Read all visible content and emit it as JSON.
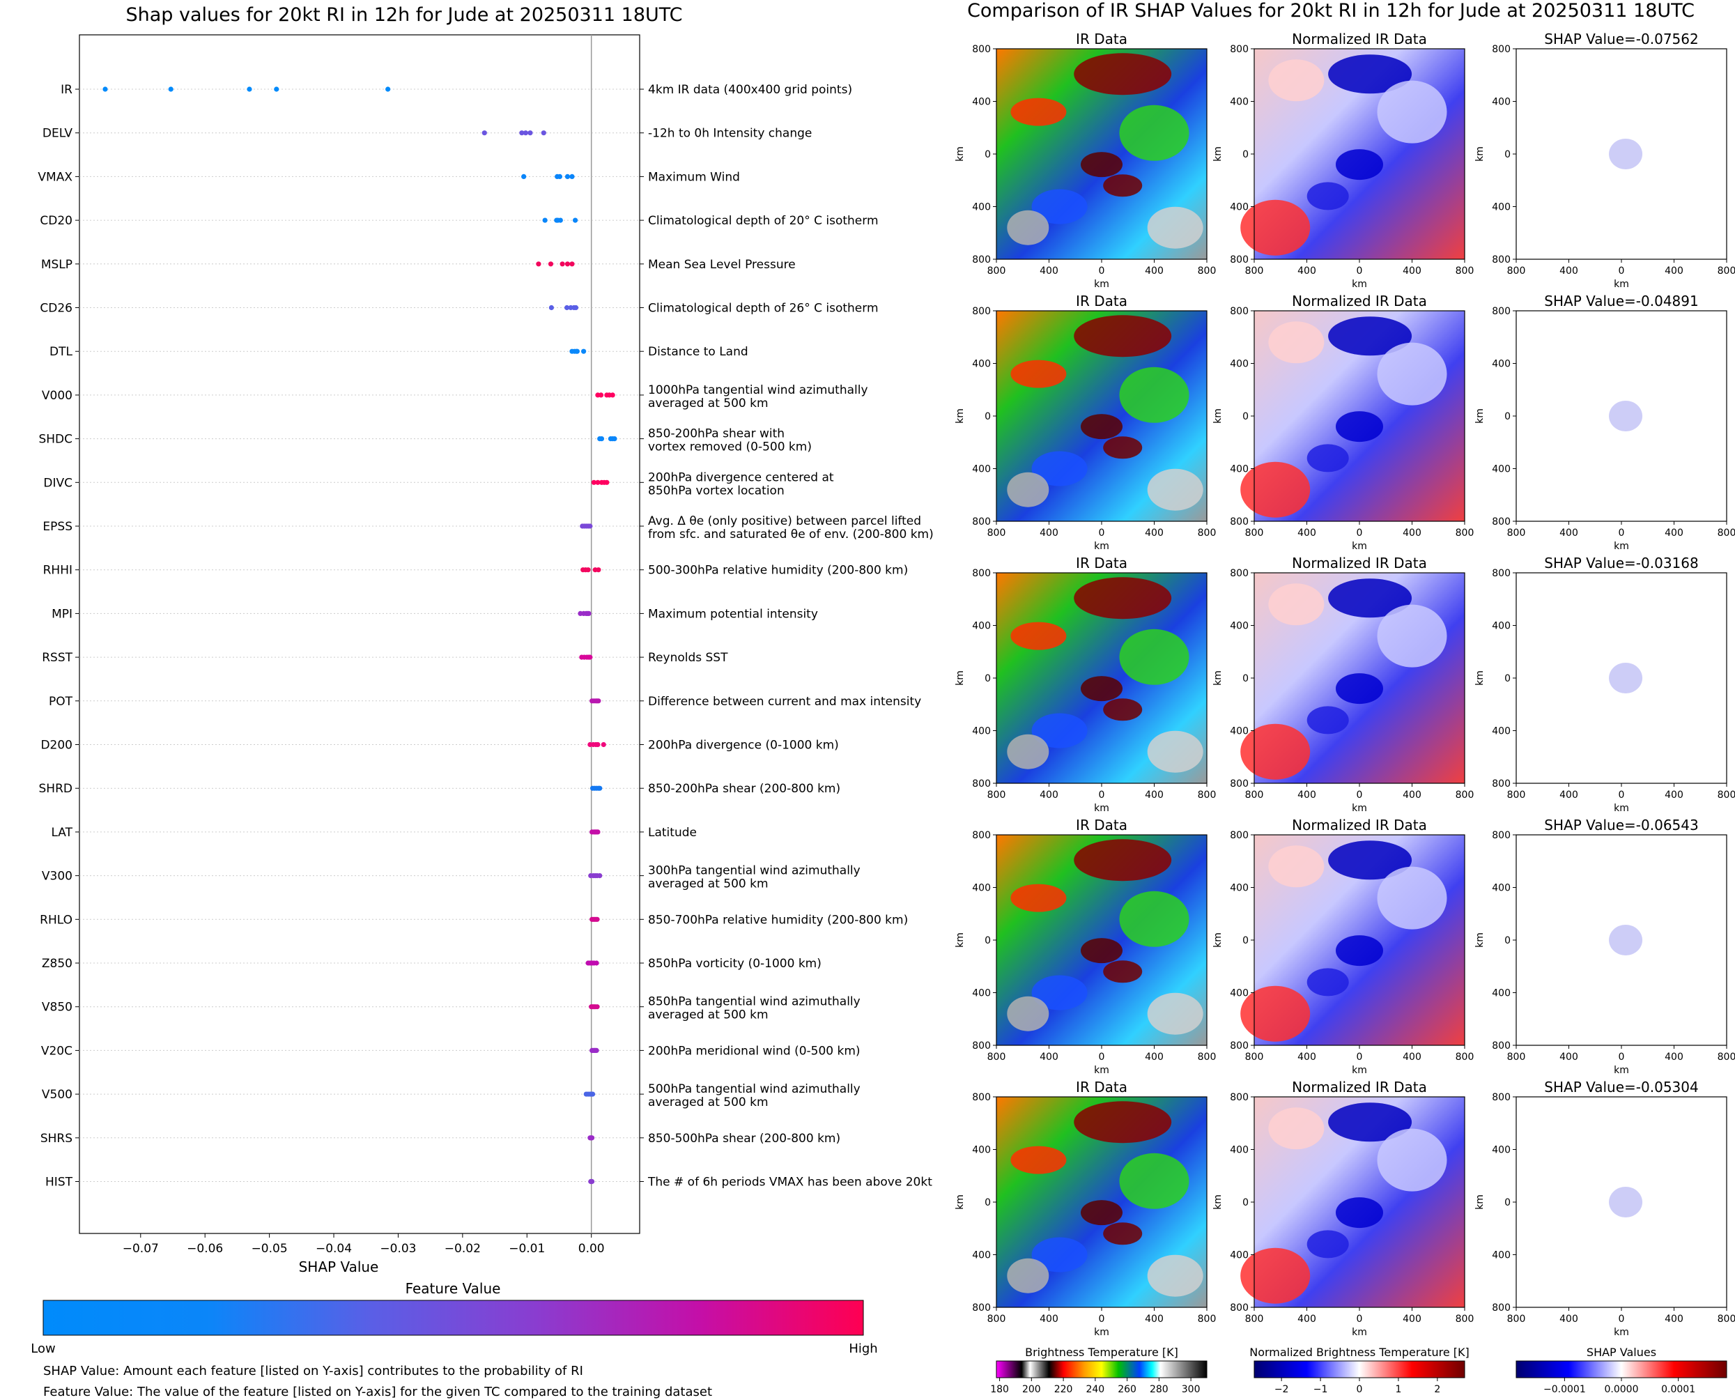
{
  "left_title": "Shap values for 20kt RI in 12h for Jude at 20250311 18UTC",
  "right_title": "Comparison of IR SHAP Values for 20kt RI in 12h for Jude at 20250311 18UTC",
  "chart_data": [
    {
      "type": "scatter",
      "title": "Shap values for 20kt RI in 12h for Jude at 20250311 18UTC",
      "xlabel": "SHAP Value",
      "xlim": [
        -0.0795,
        0.0075
      ],
      "xticks": [
        "−0.07",
        "−0.06",
        "−0.05",
        "−0.04",
        "−0.03",
        "−0.02",
        "−0.01",
        "0.00"
      ],
      "xtick_values": [
        -0.07,
        -0.06,
        -0.05,
        -0.04,
        -0.03,
        -0.02,
        -0.01,
        0.0
      ],
      "features": [
        {
          "name": "IR",
          "desc": [
            "4km IR data (400x400 grid points)"
          ],
          "shap": [
            -0.0755,
            -0.0653,
            -0.0531,
            -0.0489,
            -0.0316
          ],
          "color": "#008afb"
        },
        {
          "name": "DELV",
          "desc": [
            "-12h to 0h Intensity change"
          ],
          "shap": [
            -0.0166,
            -0.0108,
            -0.0102,
            -0.0095,
            -0.0074
          ],
          "color": "#6a55e0"
        },
        {
          "name": "VMAX",
          "desc": [
            "Maximum Wind"
          ],
          "shap": [
            -0.0105,
            -0.0053,
            -0.0049,
            -0.0037,
            -0.003
          ],
          "color": "#0a85fa"
        },
        {
          "name": "CD20",
          "desc": [
            "Climatological depth of 20° C isotherm"
          ],
          "shap": [
            -0.0072,
            -0.0054,
            -0.0048,
            -0.0052,
            -0.0025
          ],
          "color": "#0a86fa"
        },
        {
          "name": "MSLP",
          "desc": [
            "Mean Sea Level Pressure"
          ],
          "shap": [
            -0.0082,
            -0.0063,
            -0.0045,
            -0.0037,
            -0.003
          ],
          "color": "#f2065c"
        },
        {
          "name": "CD26",
          "desc": [
            "Climatological depth of 26° C isotherm"
          ],
          "shap": [
            -0.0062,
            -0.0038,
            -0.0032,
            -0.0027,
            -0.0024
          ],
          "color": "#5a5fe6"
        },
        {
          "name": "DTL",
          "desc": [
            "Distance to Land"
          ],
          "shap": [
            -0.003,
            -0.0026,
            -0.0023,
            -0.0022,
            -0.0012
          ],
          "color": "#0a88fa"
        },
        {
          "name": "V000",
          "desc": [
            "1000hPa tangential wind azimuthally",
            "averaged at 500 km"
          ],
          "shap": [
            0.001,
            0.0015,
            0.0024,
            0.0028,
            0.0033
          ],
          "color": "#ff0060"
        },
        {
          "name": "SHDC",
          "desc": [
            "850-200hPa shear with",
            "vortex removed (0-500 km)"
          ],
          "shap": [
            0.0013,
            0.0016,
            0.003,
            0.0033,
            0.0036
          ],
          "color": "#0a86fa"
        },
        {
          "name": "DIVC",
          "desc": [
            "200hPa divergence centered at",
            "850hPa vortex location"
          ],
          "shap": [
            0.0004,
            0.001,
            0.0016,
            0.002,
            0.0024
          ],
          "color": "#ff0060"
        },
        {
          "name": "EPSS",
          "desc": [
            "Avg. Δ θe (only positive) between parcel lifted",
            "from sfc. and saturated θe of env. (200-800 km)"
          ],
          "shap": [
            -0.0014,
            -0.0011,
            -0.0008,
            -0.0005,
            -0.0002
          ],
          "color": "#7a48d8"
        },
        {
          "name": "RHHI",
          "desc": [
            "500-300hPa relative humidity (200-800 km)"
          ],
          "shap": [
            -0.0013,
            -0.0009,
            -0.0005,
            0.0006,
            0.0011
          ],
          "color": "#f2085f"
        },
        {
          "name": "MPI",
          "desc": [
            "Maximum potential intensity"
          ],
          "shap": [
            -0.0017,
            -0.0012,
            -0.0008,
            -0.0006,
            -0.0004
          ],
          "color": "#9a2cc8"
        },
        {
          "name": "RSST",
          "desc": [
            "Reynolds SST"
          ],
          "shap": [
            -0.0015,
            -0.0011,
            -0.0007,
            -0.0004,
            -0.0002
          ],
          "color": "#d8089a"
        },
        {
          "name": "POT",
          "desc": [
            "Difference between current and max intensity"
          ],
          "shap": [
            0.0001,
            0.0004,
            0.0007,
            0.0009,
            0.0011
          ],
          "color": "#b818b0"
        },
        {
          "name": "D200",
          "desc": [
            "200hPa divergence (0-1000 km)"
          ],
          "shap": [
            -0.0002,
            0.0003,
            0.0007,
            0.001,
            0.0019
          ],
          "color": "#f0087c"
        },
        {
          "name": "SHRD",
          "desc": [
            "850-200hPa shear (200-800 km)"
          ],
          "shap": [
            0.0002,
            0.0005,
            0.0008,
            0.0011,
            0.0013
          ],
          "color": "#1378f2"
        },
        {
          "name": "LAT",
          "desc": [
            "Latitude"
          ],
          "shap": [
            0.0001,
            0.0004,
            0.0006,
            0.0008,
            0.001
          ],
          "color": "#c40fa8"
        },
        {
          "name": "V300",
          "desc": [
            "300hPa tangential wind azimuthally",
            "averaged at 500 km"
          ],
          "shap": [
            -0.0001,
            0.0003,
            0.0006,
            0.0009,
            0.0013
          ],
          "color": "#8a3dd0"
        },
        {
          "name": "RHLO",
          "desc": [
            "850-700hPa relative humidity (200-800 km)"
          ],
          "shap": [
            0.0001,
            0.0003,
            0.0005,
            0.0007,
            0.0009
          ],
          "color": "#d40a90"
        },
        {
          "name": "Z850",
          "desc": [
            "850hPa vorticity (0-1000 km)"
          ],
          "shap": [
            -0.0005,
            -0.0002,
            0.0001,
            0.0004,
            0.0008
          ],
          "color": "#c00cb0"
        },
        {
          "name": "V850",
          "desc": [
            "850hPa tangential wind azimuthally",
            "averaged at 500 km"
          ],
          "shap": [
            0.0,
            0.0002,
            0.0004,
            0.0006,
            0.0009
          ],
          "color": "#d40a90"
        },
        {
          "name": "V20C",
          "desc": [
            "200hPa meridional wind (0-500 km)"
          ],
          "shap": [
            0.0001,
            0.0003,
            0.0005,
            0.0006,
            0.0008
          ],
          "color": "#9a2cc8"
        },
        {
          "name": "V500",
          "desc": [
            "500hPa tangential wind azimuthally",
            "averaged at 500 km"
          ],
          "shap": [
            -0.0008,
            -0.0005,
            -0.0002,
            0.0,
            0.0002
          ],
          "color": "#4a65e6"
        },
        {
          "name": "SHRS",
          "desc": [
            "850-500hPa shear (200-800 km)"
          ],
          "shap": [
            -0.0002,
            -0.0001,
            0.0,
            0.0,
            0.0001
          ],
          "color": "#9a2cc8"
        },
        {
          "name": "HIST",
          "desc": [
            "The # of 6h periods VMAX has been above 20kt"
          ],
          "shap": [
            -0.0001,
            0.0,
            0.0,
            0.0,
            0.0001
          ],
          "color": "#8a3dd0"
        }
      ],
      "colorbar": {
        "title": "Feature Value",
        "low": "Low",
        "high": "High",
        "colors": [
          "#008bfb",
          "#0b86f9",
          "#5a5fe6",
          "#8a3dd0",
          "#c40fa8",
          "#ff0052"
        ]
      }
    },
    {
      "type": "heatmap",
      "title": "Comparison of IR SHAP Values for 20kt RI in 12h for Jude at 20250311 18UTC",
      "axis_label": "km",
      "ticks": [
        "800",
        "400",
        "0",
        "400",
        "800"
      ],
      "columns": [
        "IR Data",
        "Normalized IR Data",
        "SHAP"
      ],
      "rows": [
        {
          "ir_title": "IR Data",
          "norm_title": "Normalized IR Data",
          "shap_title": "SHAP Value=-0.07562",
          "shap_value": -0.07562
        },
        {
          "ir_title": "IR Data",
          "norm_title": "Normalized IR Data",
          "shap_title": "SHAP Value=-0.04891",
          "shap_value": -0.04891
        },
        {
          "ir_title": "IR Data",
          "norm_title": "Normalized IR Data",
          "shap_title": "SHAP Value=-0.03168",
          "shap_value": -0.03168
        },
        {
          "ir_title": "IR Data",
          "norm_title": "Normalized IR Data",
          "shap_title": "SHAP Value=-0.06543",
          "shap_value": -0.06543
        },
        {
          "ir_title": "IR Data",
          "norm_title": "Normalized IR Data",
          "shap_title": "SHAP Value=-0.05304",
          "shap_value": -0.05304
        }
      ],
      "colorbars": [
        {
          "title": "Brightness Temperature [K]",
          "ticks": [
            "180",
            "200",
            "220",
            "240",
            "260",
            "280",
            "300"
          ],
          "tick_values": [
            180,
            200,
            220,
            240,
            260,
            280,
            300
          ],
          "range": [
            178,
            310
          ]
        },
        {
          "title": "Normalized Brightness Temperature [K]",
          "ticks": [
            "−2",
            "−1",
            "0",
            "1",
            "2"
          ],
          "tick_values": [
            -2,
            -1,
            0,
            1,
            2
          ],
          "range": [
            -2.7,
            2.7
          ]
        },
        {
          "title": "SHAP Values",
          "ticks": [
            "−0.0001",
            "0.0000",
            "0.0001"
          ],
          "tick_values": [
            -0.0001,
            0,
            0.0001
          ],
          "range": [
            -0.000185,
            0.000185
          ]
        }
      ]
    }
  ],
  "footnotes": {
    "shap": "SHAP Value: Amount each feature [listed on Y-axis] contributes to the probability of RI",
    "feature": "Feature Value: The value of the feature [listed on Y-axis] for the given TC compared to the training dataset"
  }
}
